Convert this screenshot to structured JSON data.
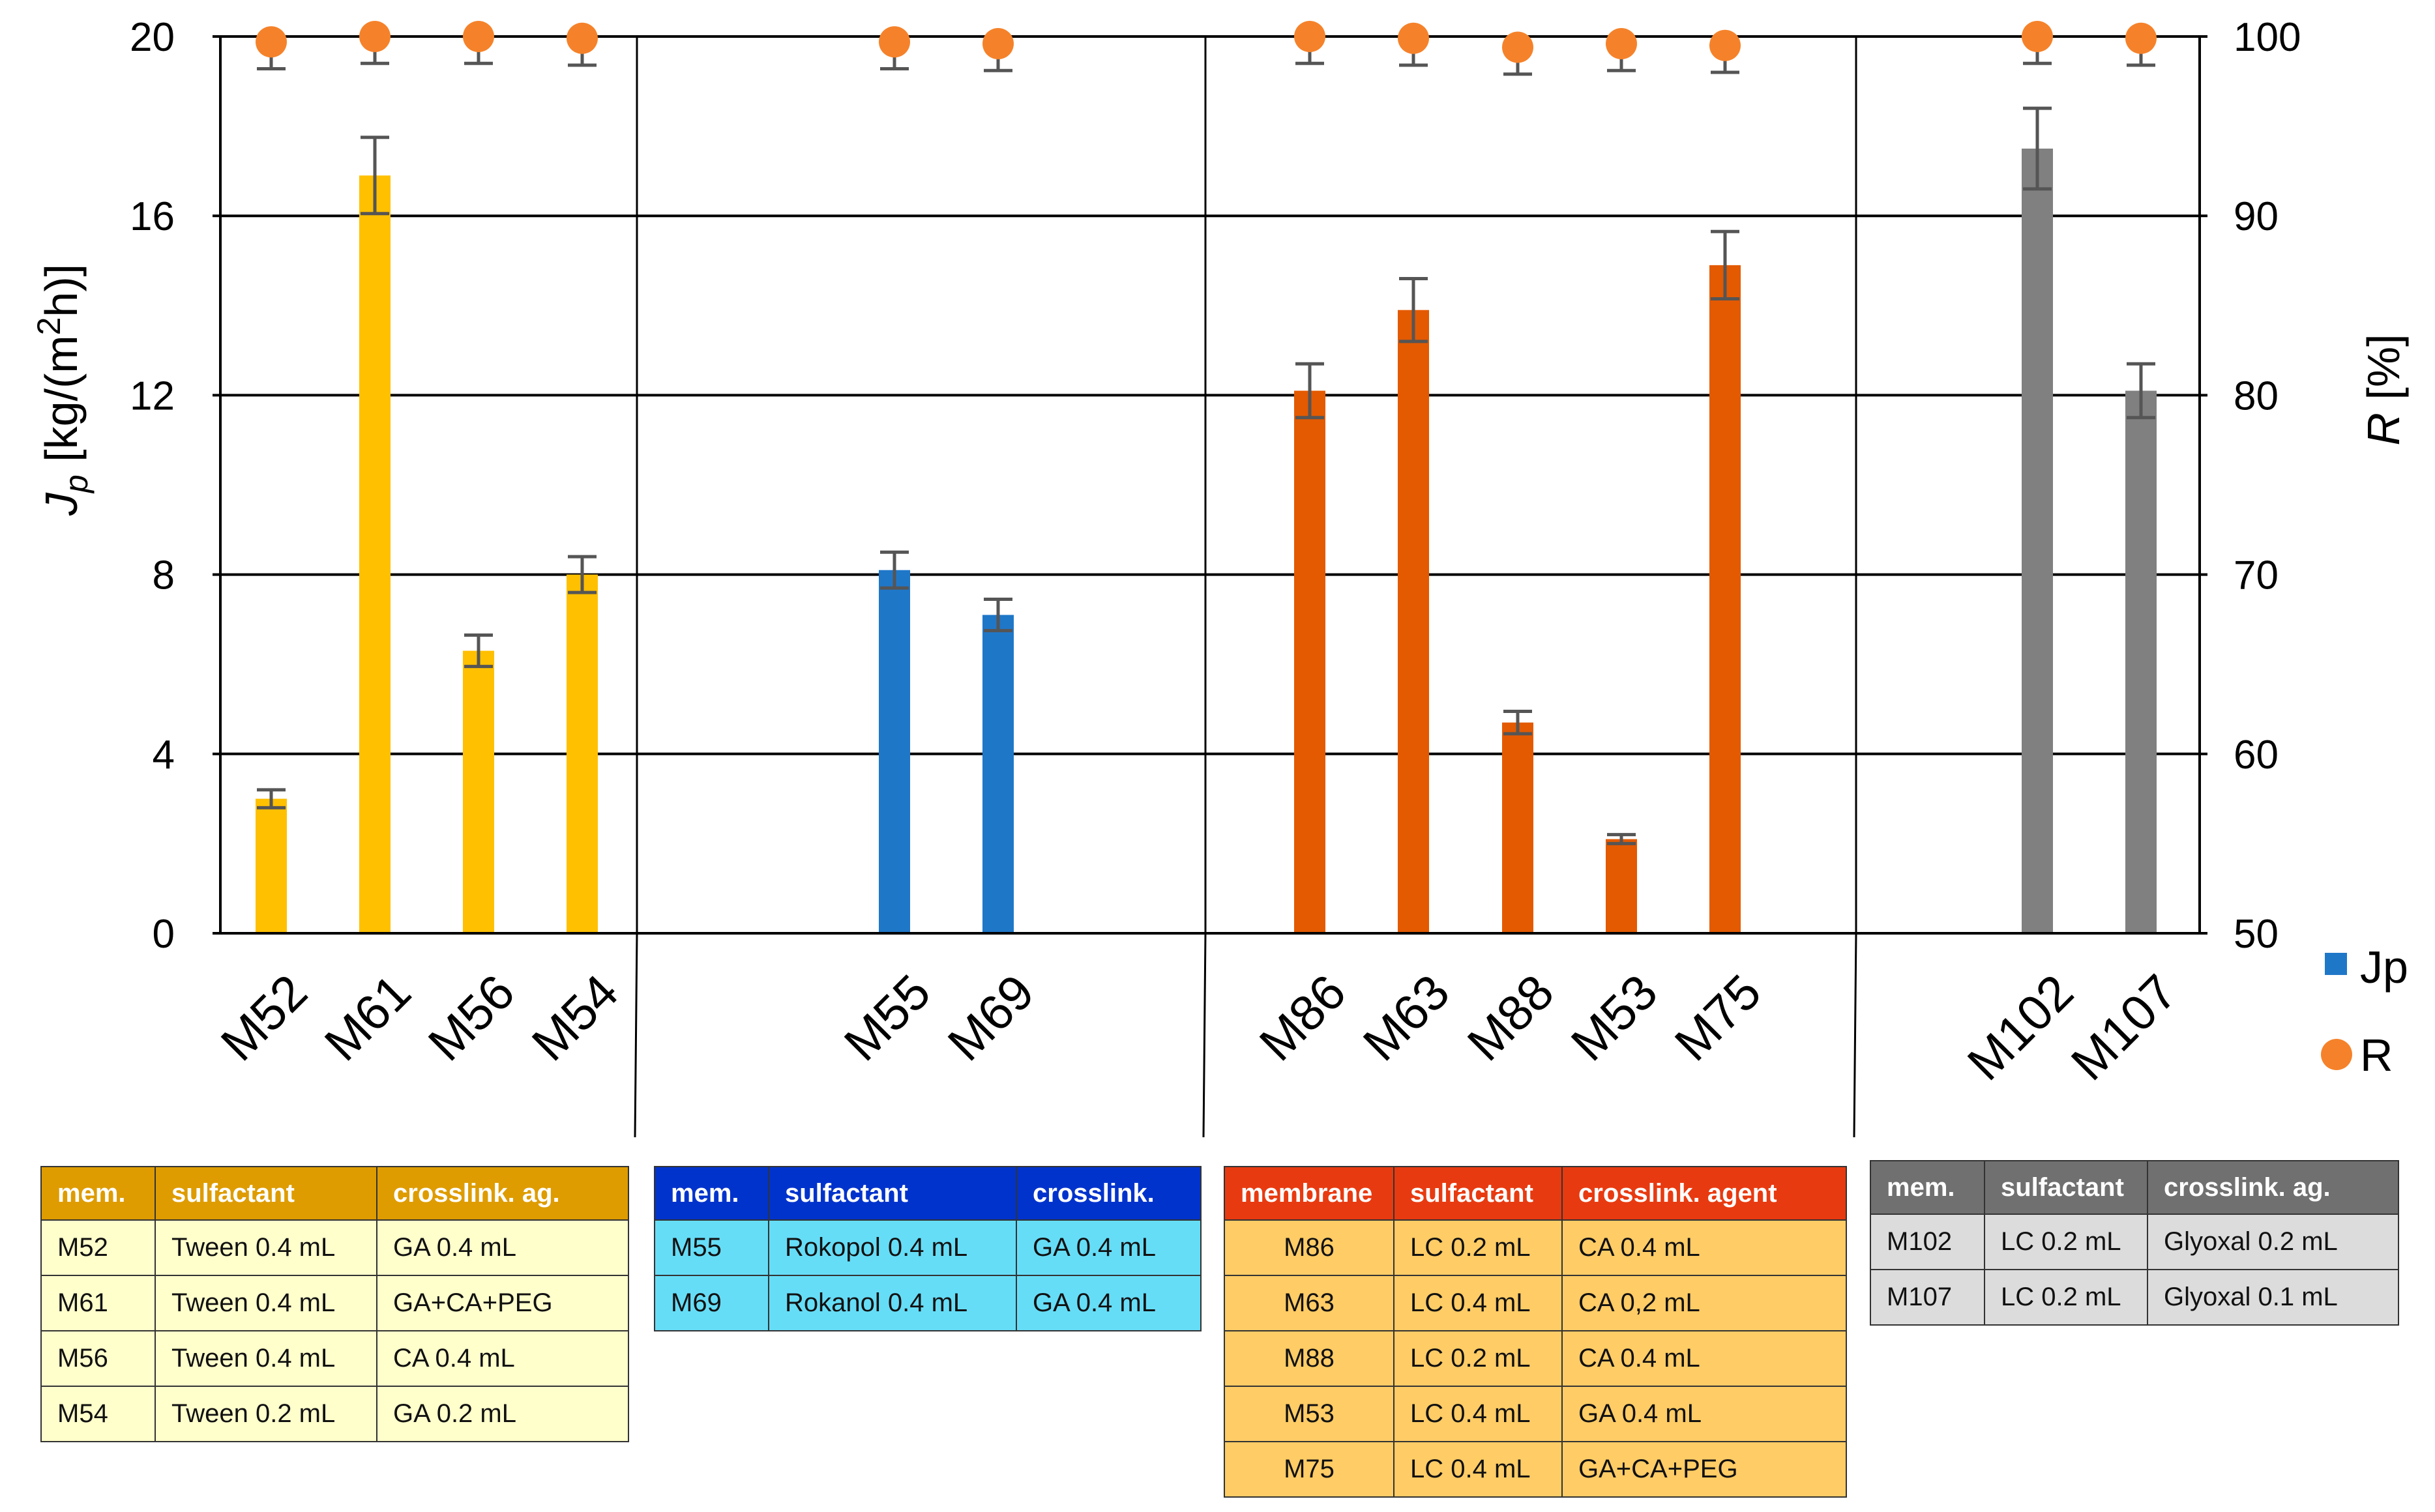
{
  "chart_data": {
    "type": "bar",
    "title": "",
    "categories": [
      "M52",
      "M61",
      "M56",
      "M54",
      "M55",
      "M69",
      "M86",
      "M63",
      "M88",
      "M53",
      "M75",
      "M102",
      "M107"
    ],
    "groups": [
      {
        "color": "#FFC000",
        "members": [
          "M52",
          "M61",
          "M56",
          "M54"
        ]
      },
      {
        "color": "#1F77C8",
        "members": [
          "M55",
          "M69"
        ]
      },
      {
        "color": "#E35A00",
        "members": [
          "M86",
          "M63",
          "M88",
          "M53",
          "M75"
        ]
      },
      {
        "color": "#808080",
        "members": [
          "M102",
          "M107"
        ]
      }
    ],
    "series": [
      {
        "name": "Jp",
        "axis": "left",
        "kind": "bar",
        "values": [
          3.0,
          16.9,
          6.3,
          8.0,
          8.1,
          7.1,
          12.1,
          13.9,
          4.7,
          2.1,
          14.9,
          17.5,
          12.1
        ],
        "errors": [
          0.2,
          0.85,
          0.35,
          0.4,
          0.4,
          0.35,
          0.6,
          0.7,
          0.25,
          0.1,
          0.75,
          0.9,
          0.6
        ]
      },
      {
        "name": "R",
        "axis": "right",
        "kind": "scatter",
        "values": [
          99.7,
          100.0,
          100.0,
          99.9,
          99.7,
          99.6,
          100.0,
          99.9,
          99.4,
          99.6,
          99.5,
          100.0,
          99.9
        ],
        "errors": [
          1.5,
          1.5,
          1.5,
          1.5,
          1.5,
          1.5,
          1.5,
          1.5,
          1.5,
          1.5,
          1.5,
          1.5,
          1.5
        ]
      }
    ],
    "ylabel_left": "J_p [kg/(m²h)]",
    "ylabel_left_parts": {
      "main": "J",
      "sub": "p",
      "rest": " [kg/(m",
      "sup": "2",
      "end": "h)]"
    },
    "ylim_left": [
      0,
      20
    ],
    "yticks_left": [
      0,
      4,
      8,
      12,
      16,
      20
    ],
    "ylabel_right": "R [%]",
    "ylabel_right_parts": {
      "main": "R",
      "rest": " [%]"
    },
    "ylim_right": [
      50,
      100
    ],
    "yticks_right": [
      50,
      60,
      70,
      80,
      90,
      100
    ],
    "grid": true,
    "legend": [
      {
        "label": "Jp",
        "marker": "square",
        "color": "#1F77C8"
      },
      {
        "label": "R",
        "marker": "circle",
        "color": "#F5822A"
      }
    ],
    "legend_position": "right"
  },
  "tables": [
    {
      "headers": [
        "mem.",
        "sulfactant",
        "crosslink. ag."
      ],
      "header_bg": "#DE9C00",
      "body_bg": "#FFFFCC",
      "rows": [
        [
          "M52",
          "Tween 0.4 mL",
          "GA 0.4 mL"
        ],
        [
          "M61",
          "Tween 0.4 mL",
          "GA+CA+PEG"
        ],
        [
          "M56",
          "Tween 0.4 mL",
          "CA 0.4 mL"
        ],
        [
          "M54",
          "Tween 0.2 mL",
          "GA 0.2 mL"
        ]
      ]
    },
    {
      "headers": [
        "mem.",
        "sulfactant",
        "crosslink."
      ],
      "header_bg": "#0033CC",
      "body_bg": "#66DDF7",
      "rows": [
        [
          "M55",
          "Rokopol 0.4 mL",
          "GA 0.4 mL"
        ],
        [
          "M69",
          "Rokanol 0.4 mL",
          "GA 0.4 mL"
        ]
      ]
    },
    {
      "headers": [
        "membrane",
        "sulfactant",
        "crosslink. agent"
      ],
      "header_bg": "#E83A10",
      "body_bg": "#FFCC66",
      "rows": [
        [
          "M86",
          "LC 0.2 mL",
          "CA 0.4 mL"
        ],
        [
          "M63",
          "LC 0.4 mL",
          "CA 0,2 mL"
        ],
        [
          "M88",
          "LC 0.2 mL",
          "CA 0.4 mL"
        ],
        [
          "M53",
          "LC 0.4 mL",
          "GA 0.4 mL"
        ],
        [
          "M75",
          "LC 0.4 mL",
          "GA+CA+PEG"
        ]
      ]
    },
    {
      "headers": [
        "mem.",
        "sulfactant",
        "crosslink. ag."
      ],
      "header_bg": "#707070",
      "body_bg": "#DCDCDC",
      "rows": [
        [
          "M102",
          "LC 0.2 mL",
          "Glyoxal 0.2 mL"
        ],
        [
          "M107",
          "LC 0.2 mL",
          "Glyoxal 0.1 mL"
        ]
      ]
    }
  ]
}
